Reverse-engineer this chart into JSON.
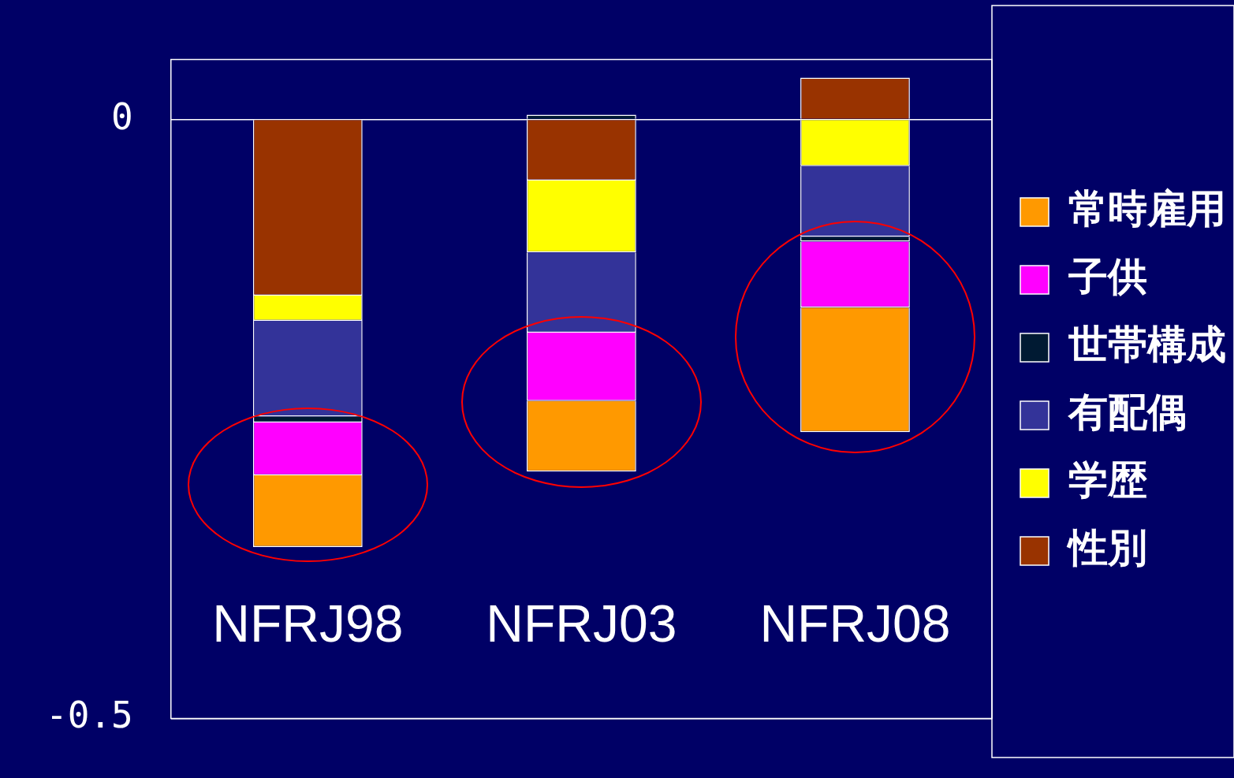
{
  "chart_data": {
    "type": "bar",
    "stacked": true,
    "categories": [
      "NFRJ98",
      "NFRJ03",
      "NFRJ08"
    ],
    "series": [
      {
        "name": "性別",
        "color": "#993300",
        "values": [
          -0.147,
          -0.051,
          0.035
        ]
      },
      {
        "name": "学歴",
        "color": "#ffff00",
        "values": [
          -0.021,
          -0.06,
          -0.039
        ]
      },
      {
        "name": "有配偶",
        "color": "#333399",
        "values": [
          -0.08,
          -0.067,
          -0.059
        ]
      },
      {
        "name": "世帯構成",
        "color": "#001a33",
        "values": [
          -0.005,
          0.004,
          -0.004
        ]
      },
      {
        "name": "子供",
        "color": "#ff00ff",
        "values": [
          -0.044,
          -0.057,
          -0.055
        ]
      },
      {
        "name": "常時雇用",
        "color": "#ff9900",
        "values": [
          -0.06,
          -0.059,
          -0.104
        ]
      }
    ],
    "ylim": [
      -0.5,
      0.05
    ],
    "yticks": [
      0,
      -0.5
    ],
    "grid": "y",
    "legend": "right"
  }
}
